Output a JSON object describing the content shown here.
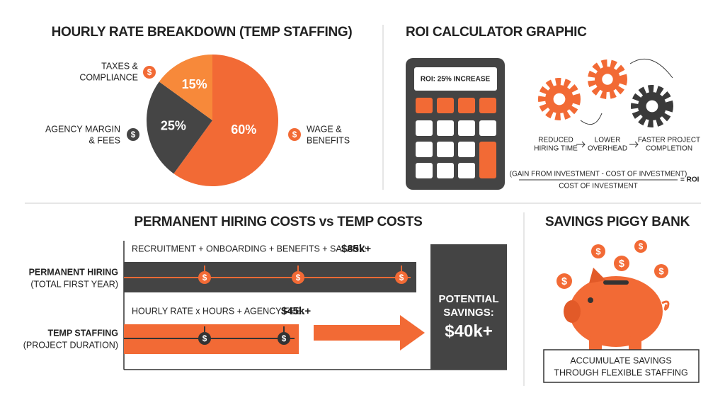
{
  "icon_symbol": "$",
  "pie_panel": {
    "title": "HOURLY RATE BREAKDOWN (TEMP STAFFING)",
    "slices": [
      {
        "name_lines": [
          "WAGE &",
          "BENEFITS"
        ],
        "value": 60,
        "value_label": "60%",
        "color": "#f26a35"
      },
      {
        "name_lines": [
          "AGENCY MARGIN",
          "& FEES"
        ],
        "value": 25,
        "value_label": "25%",
        "color": "#454545"
      },
      {
        "name_lines": [
          "TAXES &",
          "COMPLIANCE"
        ],
        "value": 15,
        "value_label": "15%",
        "color": "#f7893a"
      }
    ]
  },
  "roi_panel": {
    "title": "ROI CALCULATOR GRAPHIC",
    "screen": "ROI: 25% INCREASE",
    "steps": [
      [
        "REDUCED",
        "HIRING TIME"
      ],
      [
        "LOWER",
        "OVERHEAD"
      ],
      [
        "FASTER PROJECT",
        "COMPLETION"
      ]
    ],
    "formula": {
      "numerator": "(GAIN FROM INVESTMENT - COST OF INVESTMENT)",
      "denominator": "COST OF INVESTMENT",
      "result": "= ROI"
    }
  },
  "comparison": {
    "title": "PERMANENT HIRING COSTS vs TEMP COSTS",
    "rows": [
      {
        "label": "PERMANENT HIRING",
        "sublabel": "(TOTAL FIRST YEAR)",
        "formula": "RECRUITMENT + ONBOARDING + BENEFITS + SALARY:",
        "amount": "$85k+"
      },
      {
        "label": "TEMP STAFFING",
        "sublabel": "(PROJECT DURATION)",
        "formula": "HOURLY RATE x HOURS + AGENCY FEE:",
        "amount": "$45k+"
      }
    ],
    "savings": {
      "label_lines": [
        "POTENTIAL",
        "SAVINGS:"
      ],
      "amount": "$40k+"
    }
  },
  "piggy_panel": {
    "title": "SAVINGS PIGGY BANK",
    "caption_lines": [
      "ACCUMULATE SAVINGS",
      "THROUGH FLEXIBLE STAFFING"
    ]
  }
}
